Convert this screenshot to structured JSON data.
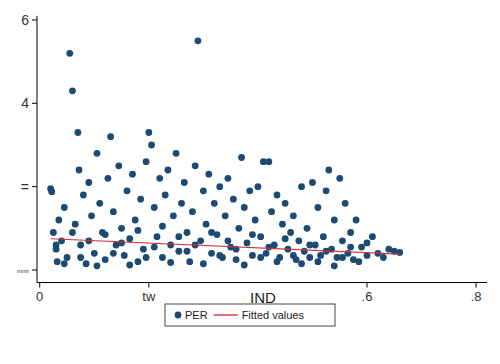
{
  "chart_data": {
    "type": "scatter",
    "x_label": "IND",
    "xlim": [
      -0.005,
      0.82
    ],
    "ylim": [
      -0.3,
      6.1
    ],
    "xticks": [
      0,
      {
        "value": 0.2,
        "label": "tw"
      },
      {
        "value": 0.6,
        "label": ".6"
      },
      {
        "value": 0.8,
        "label": ".8"
      }
    ],
    "yticks": [
      {
        "value": 0,
        "label": "mmr"
      },
      {
        "value": 2,
        "label": "="
      },
      4,
      6
    ],
    "grid": false,
    "legend": "bottom",
    "series": [
      {
        "name": "PER",
        "type": "scatter",
        "marker": "circle",
        "color": "#1b4a73",
        "x": [
          0.02,
          0.022,
          0.025,
          0.03,
          0.032,
          0.035,
          0.04,
          0.045,
          0.05,
          0.055,
          0.06,
          0.065,
          0.07,
          0.072,
          0.075,
          0.08,
          0.085,
          0.09,
          0.095,
          0.1,
          0.105,
          0.11,
          0.115,
          0.12,
          0.125,
          0.13,
          0.135,
          0.14,
          0.145,
          0.15,
          0.155,
          0.16,
          0.165,
          0.17,
          0.175,
          0.18,
          0.185,
          0.19,
          0.195,
          0.2,
          0.205,
          0.21,
          0.215,
          0.22,
          0.225,
          0.23,
          0.235,
          0.24,
          0.245,
          0.25,
          0.255,
          0.26,
          0.265,
          0.27,
          0.275,
          0.28,
          0.285,
          0.29,
          0.295,
          0.3,
          0.305,
          0.31,
          0.315,
          0.32,
          0.325,
          0.33,
          0.335,
          0.34,
          0.345,
          0.35,
          0.355,
          0.36,
          0.365,
          0.37,
          0.375,
          0.38,
          0.385,
          0.39,
          0.395,
          0.4,
          0.405,
          0.41,
          0.415,
          0.42,
          0.425,
          0.43,
          0.435,
          0.44,
          0.445,
          0.45,
          0.455,
          0.46,
          0.465,
          0.47,
          0.475,
          0.48,
          0.485,
          0.49,
          0.495,
          0.5,
          0.505,
          0.51,
          0.515,
          0.52,
          0.525,
          0.53,
          0.535,
          0.54,
          0.545,
          0.55,
          0.555,
          0.56,
          0.565,
          0.57,
          0.575,
          0.58,
          0.59,
          0.6,
          0.61,
          0.62,
          0.63,
          0.64,
          0.65,
          0.66,
          0.03,
          0.045,
          0.06,
          0.075,
          0.09,
          0.105,
          0.12,
          0.135,
          0.15,
          0.165,
          0.18,
          0.195,
          0.21,
          0.225,
          0.24,
          0.255,
          0.27,
          0.285,
          0.3,
          0.315,
          0.33,
          0.345,
          0.36,
          0.375,
          0.39,
          0.405,
          0.42,
          0.435,
          0.45,
          0.465,
          0.48,
          0.495,
          0.51,
          0.525,
          0.54,
          0.555,
          0.57,
          0.585,
          0.6
        ],
        "values": [
          1.95,
          1.88,
          0.9,
          0.5,
          0.2,
          1.2,
          0.7,
          1.5,
          0.3,
          5.2,
          4.3,
          1.1,
          3.3,
          2.4,
          0.6,
          1.8,
          0.15,
          2.1,
          1.3,
          0.4,
          2.8,
          1.6,
          0.9,
          0.25,
          2.2,
          3.2,
          1.4,
          0.6,
          2.5,
          1.0,
          0.35,
          1.9,
          0.75,
          2.3,
          1.2,
          0.2,
          1.7,
          0.5,
          2.6,
          3.3,
          3.0,
          1.5,
          0.8,
          2.2,
          0.3,
          1.8,
          2.4,
          0.6,
          1.3,
          2.8,
          0.45,
          1.6,
          2.1,
          0.9,
          0.2,
          1.4,
          2.5,
          5.5,
          0.7,
          1.9,
          1.1,
          2.3,
          0.4,
          1.6,
          0.85,
          2.0,
          0.3,
          1.3,
          2.2,
          0.55,
          1.7,
          0.25,
          1.0,
          2.7,
          1.5,
          0.65,
          1.9,
          0.35,
          1.2,
          2.0,
          0.8,
          2.6,
          0.4,
          2.6,
          1.4,
          0.6,
          1.8,
          0.3,
          1.1,
          1.6,
          0.5,
          0.9,
          1.3,
          0.25,
          0.7,
          2.0,
          0.45,
          1.0,
          0.3,
          2.1,
          0.6,
          1.5,
          0.35,
          0.8,
          1.9,
          2.4,
          0.5,
          1.2,
          0.3,
          2.2,
          0.7,
          1.6,
          0.4,
          0.9,
          0.25,
          1.2,
          0.55,
          0.35,
          0.8,
          0.4,
          0.3,
          0.5,
          0.45,
          0.42,
          0.6,
          0.15,
          0.9,
          0.3,
          0.7,
          0.1,
          0.85,
          0.4,
          0.65,
          0.12,
          0.95,
          0.3,
          0.55,
          1.05,
          0.18,
          0.8,
          0.45,
          0.6,
          0.15,
          0.9,
          0.35,
          0.7,
          0.5,
          0.12,
          0.85,
          0.3,
          0.55,
          0.2,
          0.75,
          0.35,
          0.15,
          0.6,
          0.2,
          0.45,
          0.1,
          0.3,
          0.55,
          0.2,
          0.65
        ]
      },
      {
        "name": "Fitted values",
        "type": "line",
        "line_style": "solid",
        "color": "#d0343a",
        "x": [
          0.02,
          0.66
        ],
        "values": [
          0.75,
          0.38
        ]
      }
    ]
  }
}
